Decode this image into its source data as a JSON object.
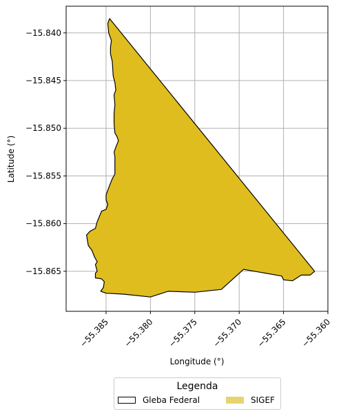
{
  "map": {
    "xlabel": "Longitude (°)",
    "ylabel": "Latitude (°)",
    "xlim": [
      -55.3895,
      -55.36
    ],
    "ylim": [
      -15.8692,
      -15.8372
    ],
    "xticks": [
      -55.385,
      -55.38,
      -55.375,
      -55.37,
      -55.365,
      -55.36
    ],
    "xtick_labels": [
      "−55.385",
      "−55.380",
      "−55.375",
      "−55.370",
      "−55.365",
      "−55.360"
    ],
    "yticks": [
      -15.84,
      -15.845,
      -15.85,
      -15.855,
      -15.86,
      -15.865
    ],
    "ytick_labels": [
      "−15.840",
      "−15.845",
      "−15.850",
      "−15.855",
      "−15.860",
      "−15.865"
    ],
    "grid": true,
    "colors": {
      "sigef_fill": "#e0bd1f",
      "gleba_edge": "#000000",
      "grid": "#b0b0b0",
      "legend_sigef": "#e6d56e"
    },
    "polygon": [
      [
        -55.3846,
        -15.8385
      ],
      [
        -55.3615,
        -15.865
      ],
      [
        -55.362,
        -15.8654
      ],
      [
        -55.363,
        -15.8654
      ],
      [
        -55.364,
        -15.866
      ],
      [
        -55.365,
        -15.8659
      ],
      [
        -55.3652,
        -15.8655
      ],
      [
        -55.3695,
        -15.8648
      ],
      [
        -55.372,
        -15.8669
      ],
      [
        -55.375,
        -15.8672
      ],
      [
        -55.378,
        -15.8671
      ],
      [
        -55.38,
        -15.8677
      ],
      [
        -55.383,
        -15.8674
      ],
      [
        -55.385,
        -15.8673
      ],
      [
        -55.3856,
        -15.8671
      ],
      [
        -55.3853,
        -15.8667
      ],
      [
        -55.3852,
        -15.8661
      ],
      [
        -55.3855,
        -15.8658
      ],
      [
        -55.3862,
        -15.8657
      ],
      [
        -55.3862,
        -15.8652
      ],
      [
        -55.386,
        -15.865
      ],
      [
        -55.3862,
        -15.8643
      ],
      [
        -55.386,
        -15.864
      ],
      [
        -55.3863,
        -15.8635
      ],
      [
        -55.3866,
        -15.8628
      ],
      [
        -55.387,
        -15.8623
      ],
      [
        -55.3872,
        -15.8612
      ],
      [
        -55.3868,
        -15.8608
      ],
      [
        -55.3862,
        -15.8605
      ],
      [
        -55.386,
        -15.8598
      ],
      [
        -55.3855,
        -15.8587
      ],
      [
        -55.385,
        -15.8585
      ],
      [
        -55.3848,
        -15.858
      ],
      [
        -55.385,
        -15.8575
      ],
      [
        -55.385,
        -15.857
      ],
      [
        -55.3848,
        -15.8565
      ],
      [
        -55.3846,
        -15.856
      ],
      [
        -55.3843,
        -15.8553
      ],
      [
        -55.384,
        -15.8548
      ],
      [
        -55.384,
        -15.854
      ],
      [
        -55.384,
        -15.853
      ],
      [
        -55.3841,
        -15.8525
      ],
      [
        -55.3839,
        -15.852
      ],
      [
        -55.3836,
        -15.8513
      ],
      [
        -55.3838,
        -15.8508
      ],
      [
        -55.384,
        -15.8505
      ],
      [
        -55.3841,
        -15.8495
      ],
      [
        -55.3841,
        -15.8485
      ],
      [
        -55.384,
        -15.8475
      ],
      [
        -55.3841,
        -15.8465
      ],
      [
        -55.3839,
        -15.846
      ],
      [
        -55.384,
        -15.8452
      ],
      [
        -55.3842,
        -15.8445
      ],
      [
        -55.3843,
        -15.843
      ],
      [
        -55.3845,
        -15.8422
      ],
      [
        -55.3845,
        -15.8415
      ],
      [
        -55.3844,
        -15.8408
      ],
      [
        -55.3847,
        -15.84
      ],
      [
        -55.3848,
        -15.839
      ]
    ]
  },
  "legend": {
    "title": "Legenda",
    "gleba_label": "Gleba Federal",
    "sigef_label": "SIGEF"
  }
}
